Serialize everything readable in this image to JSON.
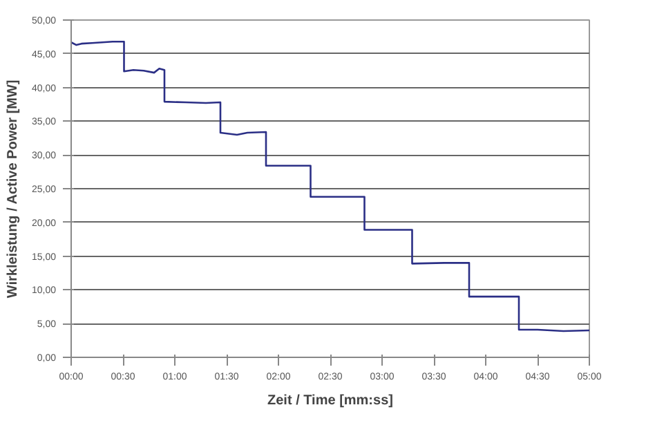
{
  "chart_data": {
    "type": "line",
    "xlabel": "Zeit / Time [mm:ss]",
    "ylabel": "Wirkleistung / Active Power [MW]",
    "series": [
      {
        "color": "#2b2f86",
        "x": [
          0,
          0.05,
          0.1,
          0.2,
          0.3,
          0.4,
          0.51,
          0.51,
          0.6,
          0.7,
          0.8,
          0.85,
          0.9,
          0.9,
          1.1,
          1.3,
          1.44,
          1.44,
          1.6,
          1.7,
          1.88,
          1.88,
          2.1,
          2.31,
          2.31,
          2.6,
          2.83,
          2.83,
          3.1,
          3.29,
          3.29,
          3.6,
          3.84,
          3.84,
          4.1,
          4.32,
          4.32,
          4.5,
          4.75,
          5.0
        ],
        "values": [
          46.7,
          46.3,
          46.5,
          46.6,
          46.7,
          46.8,
          46.8,
          42.4,
          42.6,
          42.5,
          42.2,
          42.8,
          42.6,
          37.9,
          37.8,
          37.7,
          37.8,
          33.3,
          33.0,
          33.3,
          33.4,
          28.4,
          28.4,
          28.4,
          23.8,
          23.8,
          23.8,
          18.9,
          18.9,
          18.9,
          13.9,
          14.0,
          14.0,
          9.0,
          9.0,
          9.0,
          4.1,
          4.1,
          3.9,
          4.0
        ]
      }
    ],
    "xlim": [
      0,
      5
    ],
    "xticks": [
      {
        "value": 0,
        "label": "00:00"
      },
      {
        "value": 0.5,
        "label": "00:30"
      },
      {
        "value": 1,
        "label": "01:00"
      },
      {
        "value": 1.5,
        "label": "01:30"
      },
      {
        "value": 2,
        "label": "02:00"
      },
      {
        "value": 2.5,
        "label": "02:30"
      },
      {
        "value": 3,
        "label": "03:00"
      },
      {
        "value": 3.5,
        "label": "03:30"
      },
      {
        "value": 4,
        "label": "04:00"
      },
      {
        "value": 4.5,
        "label": "04:30"
      },
      {
        "value": 5,
        "label": "05:00"
      }
    ],
    "ylim": [
      0,
      50
    ],
    "yticks": [
      {
        "value": 0,
        "label": "0,00"
      },
      {
        "value": 5,
        "label": "5,00"
      },
      {
        "value": 10,
        "label": "10,00"
      },
      {
        "value": 15,
        "label": "15,00"
      },
      {
        "value": 20,
        "label": "20,00"
      },
      {
        "value": 25,
        "label": "25,00"
      },
      {
        "value": 30,
        "label": "30,00"
      },
      {
        "value": 35,
        "label": "35,00"
      },
      {
        "value": 40,
        "label": "40,00"
      },
      {
        "value": 45,
        "label": "45,00"
      },
      {
        "value": 50,
        "label": "50,00"
      }
    ],
    "grid": "y",
    "marker": "none",
    "line_style": "solid"
  }
}
